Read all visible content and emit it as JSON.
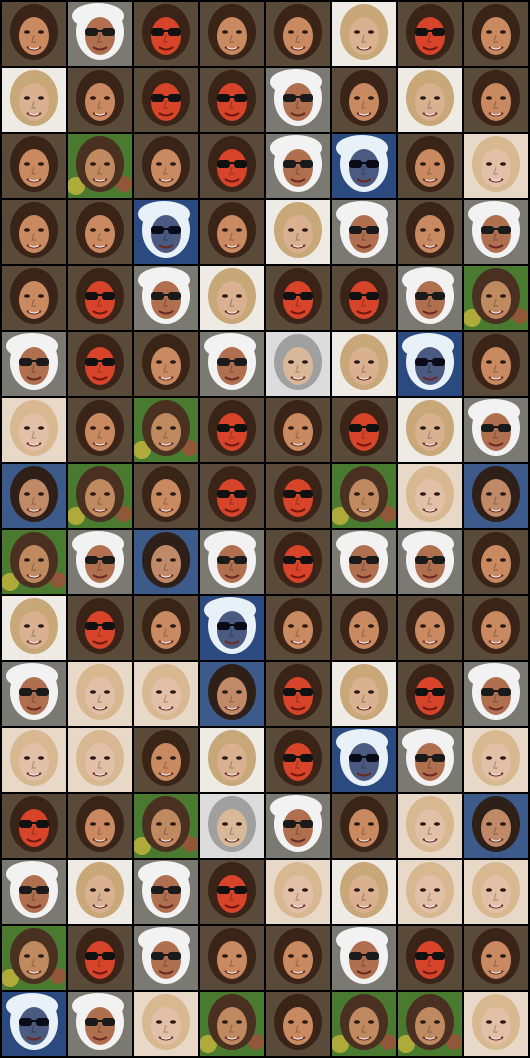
{
  "grid": {
    "columns": 8,
    "rows": 16
  },
  "face_types": {
    "brunette-smile": {
      "skin": "#c98a62",
      "hair": "#3a2418",
      "bg": "#5a4a3a",
      "accent": "#e9e0d0",
      "glasses": false,
      "hat": false,
      "red": false
    },
    "sunglasses-hat": {
      "skin": "#b07050",
      "hair": "#f2f2f2",
      "bg": "#7a7a72",
      "accent": "#1a1a1a",
      "glasses": true,
      "hat": true,
      "red": false
    },
    "red-face-glasses": {
      "skin": "#d8442a",
      "hair": "#3a2418",
      "bg": "#5a4a3a",
      "accent": "#111111",
      "glasses": true,
      "hat": false,
      "red": true
    },
    "blond-man": {
      "skin": "#d9b090",
      "hair": "#c8a878",
      "bg": "#eeeae4",
      "accent": "#8a5040",
      "glasses": false,
      "hat": false,
      "red": false
    },
    "brunette-blue": {
      "skin": "#c08a68",
      "hair": "#2e2018",
      "bg": "#3c5a8a",
      "accent": "#e0d0c0",
      "glasses": false,
      "hat": false,
      "red": false
    },
    "green-bg-girl": {
      "skin": "#c08a60",
      "hair": "#4a3020",
      "bg": "#4a7a30",
      "accent": "#d8c040",
      "glasses": false,
      "hat": false,
      "red": false
    },
    "blue-shade-glasses": {
      "skin": "#4a5a80",
      "hair": "#e8f0f8",
      "bg": "#2a4a80",
      "accent": "#0a0a18",
      "glasses": true,
      "hat": true,
      "red": false
    },
    "pale-blond": {
      "skin": "#e2c0a8",
      "hair": "#d8b890",
      "bg": "#e8d8c8",
      "accent": "#c08070",
      "glasses": false,
      "hat": false,
      "red": false
    },
    "gray-man": {
      "skin": "#d8b898",
      "hair": "#a0a0a0",
      "bg": "#dcdcdc",
      "accent": "#7a5040",
      "glasses": false,
      "hat": false,
      "red": false
    }
  },
  "tiles": [
    [
      "brunette-smile",
      "sunglasses-hat",
      "red-face-glasses",
      "brunette-smile",
      "brunette-smile",
      "blond-man",
      "red-face-glasses",
      "brunette-smile"
    ],
    [
      "blond-man",
      "brunette-smile",
      "red-face-glasses",
      "red-face-glasses",
      "sunglasses-hat",
      "brunette-smile",
      "blond-man",
      "brunette-smile"
    ],
    [
      "brunette-smile",
      "green-bg-girl",
      "brunette-smile",
      "red-face-glasses",
      "sunglasses-hat",
      "blue-shade-glasses",
      "brunette-smile",
      "pale-blond"
    ],
    [
      "brunette-smile",
      "brunette-smile",
      "blue-shade-glasses",
      "brunette-smile",
      "blond-man",
      "sunglasses-hat",
      "brunette-smile",
      "sunglasses-hat"
    ],
    [
      "brunette-smile",
      "red-face-glasses",
      "sunglasses-hat",
      "blond-man",
      "red-face-glasses",
      "red-face-glasses",
      "sunglasses-hat",
      "green-bg-girl"
    ],
    [
      "sunglasses-hat",
      "red-face-glasses",
      "brunette-smile",
      "sunglasses-hat",
      "gray-man",
      "blond-man",
      "blue-shade-glasses",
      "brunette-smile"
    ],
    [
      "pale-blond",
      "brunette-smile",
      "green-bg-girl",
      "red-face-glasses",
      "brunette-smile",
      "red-face-glasses",
      "blond-man",
      "sunglasses-hat"
    ],
    [
      "brunette-blue",
      "green-bg-girl",
      "brunette-smile",
      "red-face-glasses",
      "red-face-glasses",
      "green-bg-girl",
      "pale-blond",
      "brunette-blue"
    ],
    [
      "green-bg-girl",
      "sunglasses-hat",
      "brunette-blue",
      "sunglasses-hat",
      "red-face-glasses",
      "sunglasses-hat",
      "sunglasses-hat",
      "brunette-smile"
    ],
    [
      "blond-man",
      "red-face-glasses",
      "brunette-smile",
      "blue-shade-glasses",
      "brunette-smile",
      "brunette-smile",
      "brunette-smile",
      "brunette-smile"
    ],
    [
      "sunglasses-hat",
      "pale-blond",
      "pale-blond",
      "brunette-blue",
      "red-face-glasses",
      "blond-man",
      "red-face-glasses",
      "sunglasses-hat"
    ],
    [
      "pale-blond",
      "pale-blond",
      "brunette-smile",
      "blond-man",
      "red-face-glasses",
      "blue-shade-glasses",
      "sunglasses-hat",
      "pale-blond"
    ],
    [
      "red-face-glasses",
      "brunette-smile",
      "green-bg-girl",
      "gray-man",
      "sunglasses-hat",
      "brunette-smile",
      "pale-blond",
      "brunette-blue"
    ],
    [
      "sunglasses-hat",
      "blond-man",
      "sunglasses-hat",
      "red-face-glasses",
      "pale-blond",
      "blond-man",
      "pale-blond",
      "pale-blond"
    ],
    [
      "green-bg-girl",
      "red-face-glasses",
      "sunglasses-hat",
      "brunette-smile",
      "brunette-smile",
      "sunglasses-hat",
      "red-face-glasses",
      "brunette-smile"
    ],
    [
      "blue-shade-glasses",
      "sunglasses-hat",
      "pale-blond",
      "green-bg-girl",
      "brunette-smile",
      "green-bg-girl",
      "green-bg-girl",
      "pale-blond"
    ]
  ]
}
